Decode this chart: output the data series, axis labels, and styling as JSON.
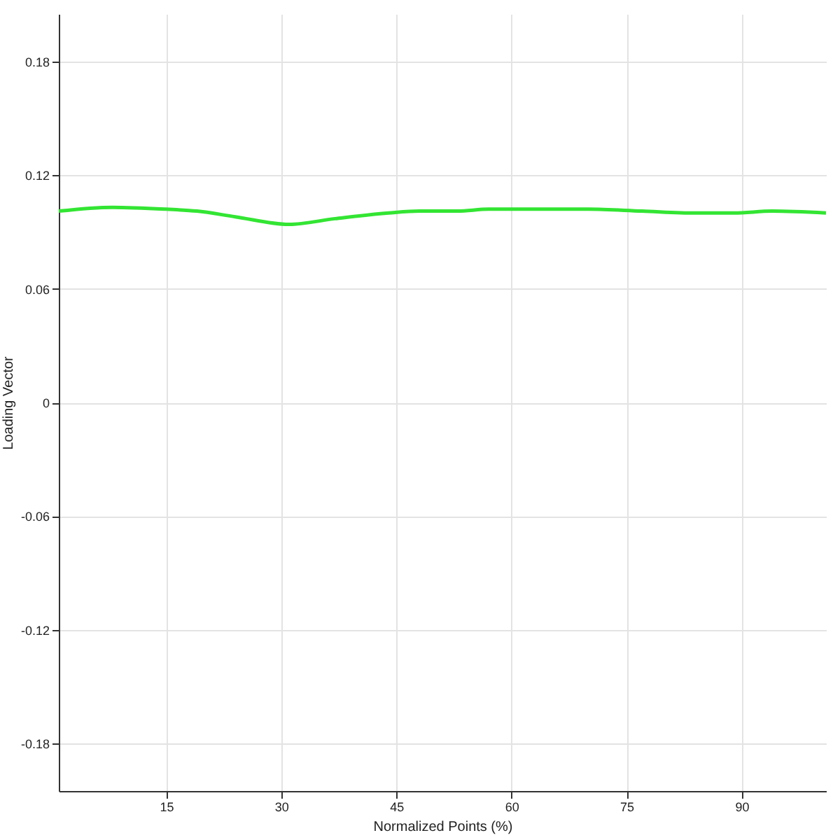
{
  "chart_data": {
    "type": "line",
    "xlabel": "Normalized Points (%)",
    "ylabel": "Loading Vector",
    "x": [
      1,
      8,
      15,
      19,
      24,
      31,
      37,
      44,
      48,
      53,
      57,
      64,
      70,
      77,
      84,
      89,
      94,
      101
    ],
    "series": [
      {
        "color": "#33e533",
        "values": [
          0.101,
          0.103,
          0.102,
          0.101,
          0.098,
          0.094,
          0.097,
          0.1,
          0.101,
          0.101,
          0.102,
          0.102,
          0.102,
          0.101,
          0.1,
          0.1,
          0.101,
          0.1
        ]
      }
    ],
    "xlim": [
      1,
      101
    ],
    "xticks": [
      15,
      30,
      45,
      60,
      75,
      90
    ],
    "ylim": [
      -0.205,
      0.205
    ],
    "yticks": [
      -0.18,
      -0.12,
      -0.06,
      0,
      0.06,
      0.12,
      0.18
    ],
    "grid": true,
    "marker": "none",
    "line_style": "solid"
  }
}
